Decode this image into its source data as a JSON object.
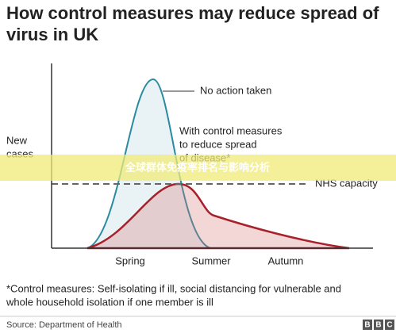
{
  "header": {
    "title_lines": [
      "How control measures may reduce spread of",
      "virus in UK"
    ]
  },
  "axis": {
    "y_label_lines": [
      "New",
      "cases"
    ],
    "x_labels": [
      "Spring",
      "Summer",
      "Autumn"
    ]
  },
  "annotations": {
    "no_action": "No action taken",
    "control_lines": [
      "With control measures",
      "to reduce spread",
      "of disease*"
    ],
    "capacity": "NHS capacity"
  },
  "banner": "全球群体免疫率排名与影响分析",
  "footnote_lines": [
    "*Control measures: Self-isolating if ill, social distancing for vulnerable and",
    "whole household isolation if one member is ill"
  ],
  "source": "Source: Department of Health",
  "logo": [
    "B",
    "B",
    "C"
  ]
}
